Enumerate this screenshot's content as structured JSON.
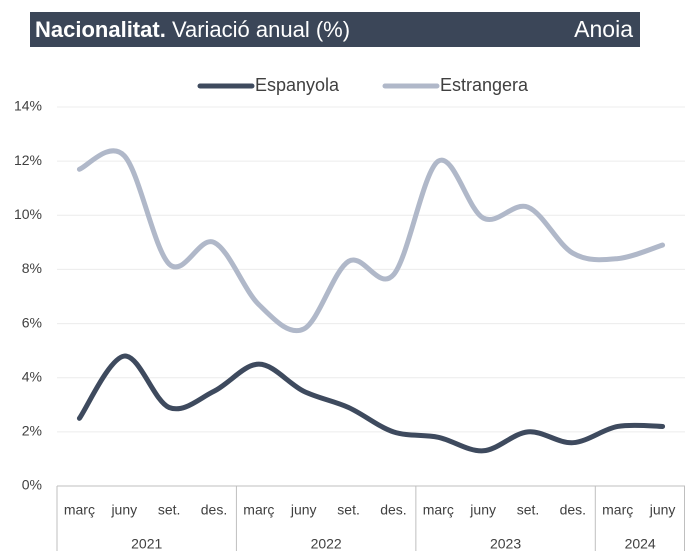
{
  "chart_data": {
    "type": "line",
    "title": "Nacionalitat.",
    "subtitle": "Variació anual (%)",
    "region": "Anoia",
    "categories": [
      "març",
      "juny",
      "set.",
      "des.",
      "març",
      "juny",
      "set.",
      "des.",
      "març",
      "juny",
      "set.",
      "des.",
      "març",
      "juny"
    ],
    "category_groups": [
      "2021",
      "2021",
      "2021",
      "2021",
      "2022",
      "2022",
      "2022",
      "2022",
      "2023",
      "2023",
      "2023",
      "2023",
      "2024",
      "2024"
    ],
    "series": [
      {
        "name": "Espanyola",
        "color": "#3e4a5e",
        "values": [
          2.5,
          4.8,
          2.9,
          3.5,
          4.5,
          3.5,
          2.9,
          2.0,
          1.8,
          1.3,
          2.0,
          1.6,
          2.2,
          2.2
        ]
      },
      {
        "name": "Estrangera",
        "color": "#b0b8c9",
        "values": [
          11.7,
          12.2,
          8.2,
          9.0,
          6.7,
          5.8,
          8.3,
          7.8,
          12.0,
          9.9,
          10.3,
          8.6,
          8.4,
          8.9
        ]
      }
    ],
    "ylim": [
      0,
      14
    ],
    "yticks": [
      {
        "value": 0,
        "label": "0%"
      },
      {
        "value": 2,
        "label": "2%"
      },
      {
        "value": 4,
        "label": "4%"
      },
      {
        "value": 6,
        "label": "6%"
      },
      {
        "value": 8,
        "label": "8%"
      },
      {
        "value": 10,
        "label": "10%"
      },
      {
        "value": 12,
        "label": "12%"
      },
      {
        "value": 14,
        "label": "14%"
      }
    ],
    "grid": true,
    "legend": "top"
  }
}
